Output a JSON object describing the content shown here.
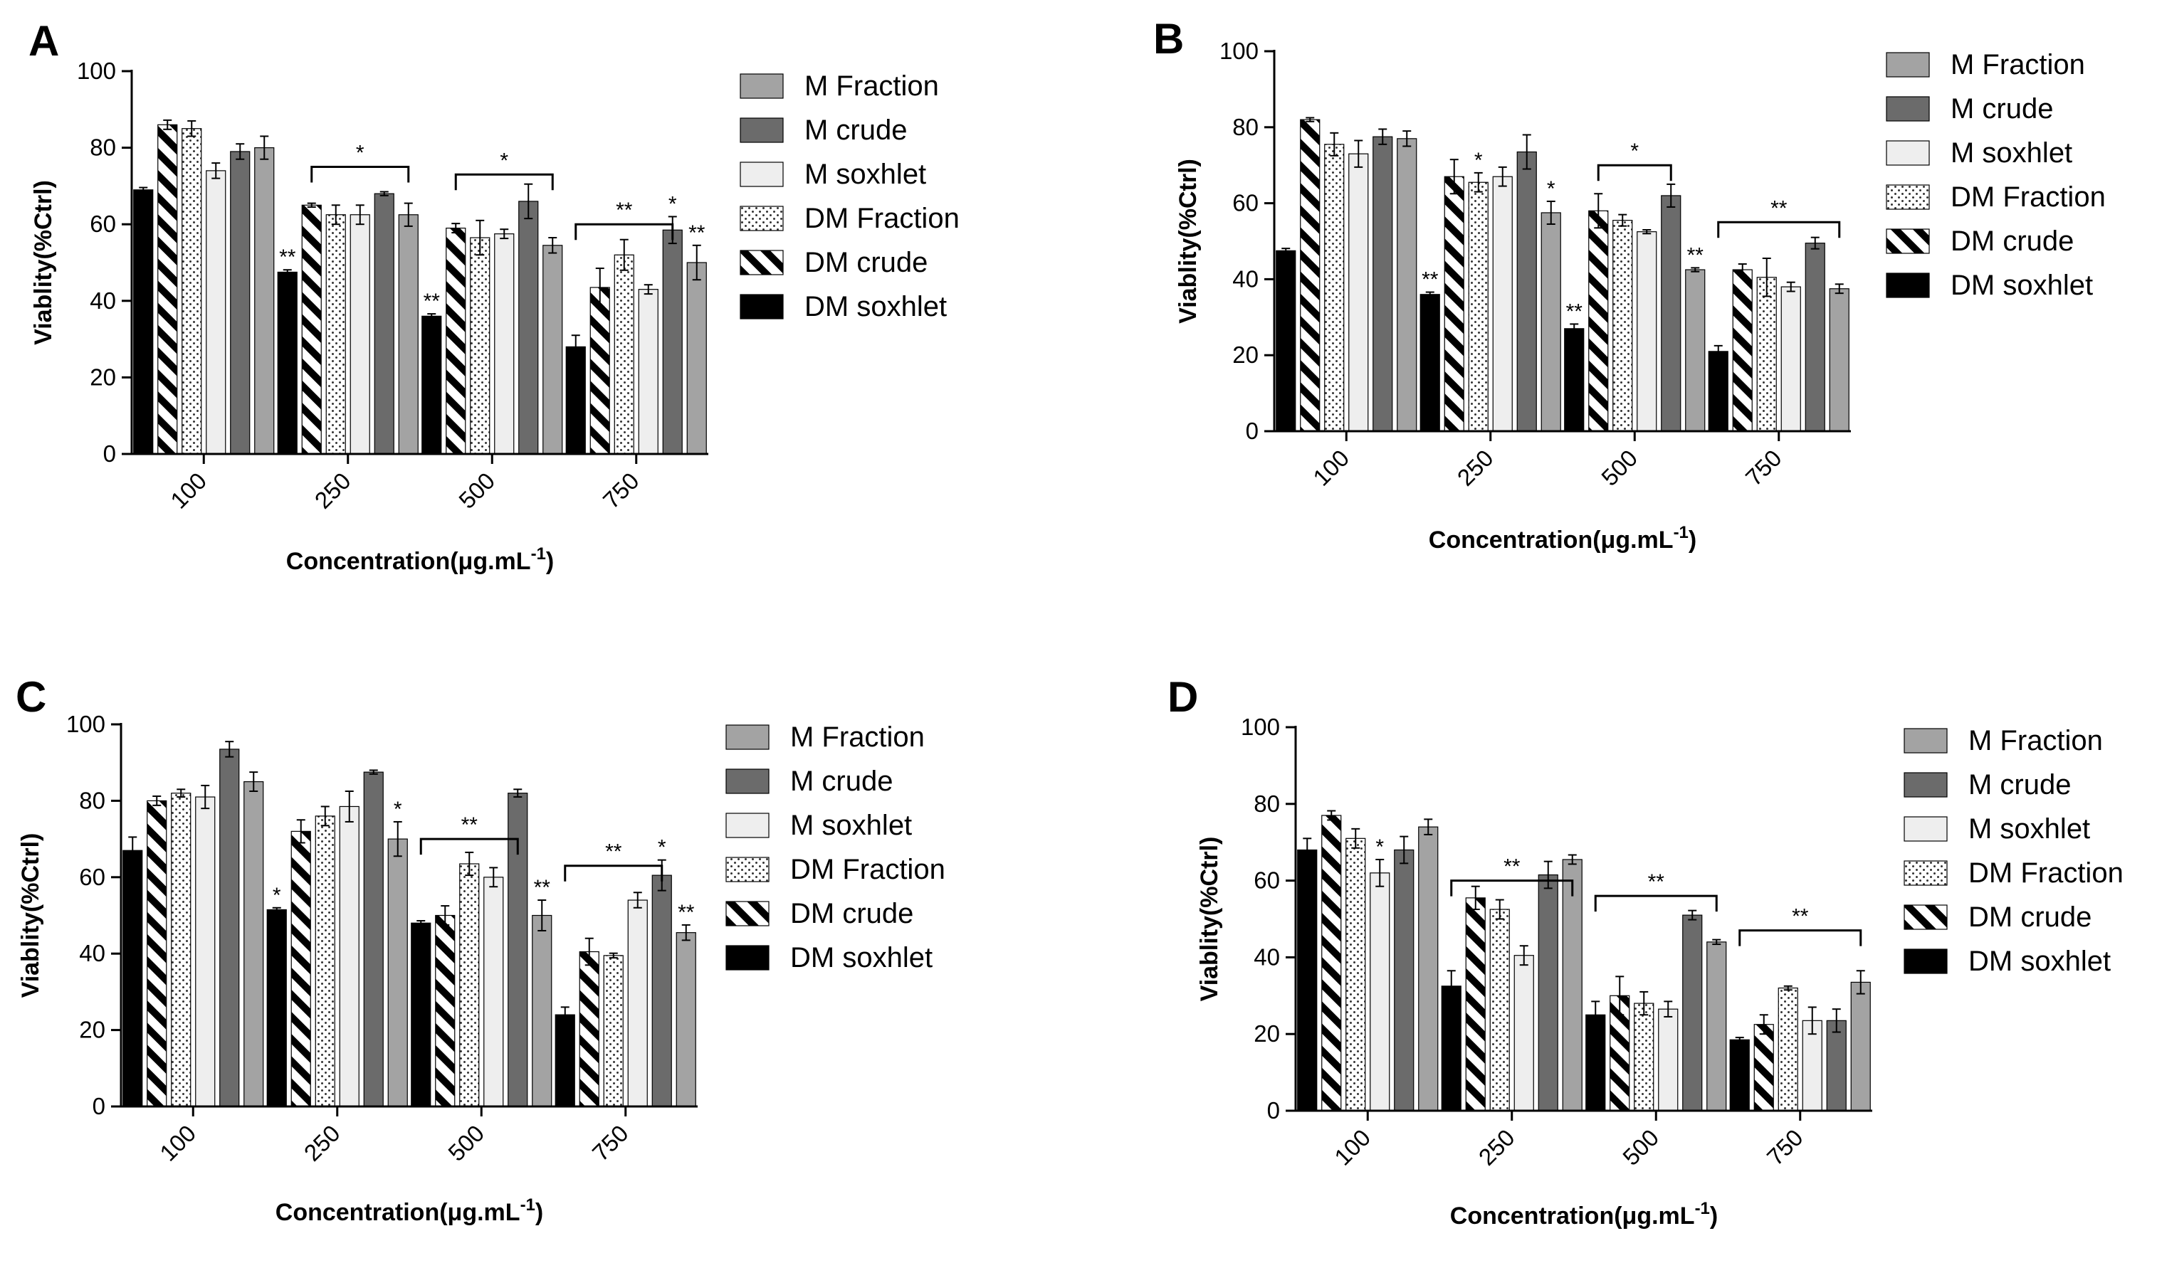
{
  "colors": {
    "DM soxhlet": "#000000",
    "DM crude": "#ffffff",
    "DM Fraction": "#ffffff",
    "M soxhlet": "#eeeeee",
    "M crude": "#6b6b6b",
    "M Fraction": "#a3a3a3"
  },
  "chart_data": [
    {
      "panel": "A",
      "type": "bar",
      "xlabel": "Concentration(μg.mL",
      "xlabel_sup": "-1",
      "xlabel_close": ")",
      "ylabel": "Viablity(%Ctrl)",
      "ylim": [
        0,
        100
      ],
      "yticks": [
        "0",
        "20",
        "40",
        "60",
        "80",
        "100"
      ],
      "categories": [
        "100",
        "250",
        "500",
        "750"
      ],
      "legend": [
        "M Fraction",
        "M crude",
        "M soxhlet",
        "DM Fraction",
        "DM crude",
        "DM soxhlet"
      ],
      "series": [
        {
          "name": "DM soxhlet",
          "values": [
            69,
            47.5,
            36,
            28
          ],
          "errors": [
            0.6,
            0.6,
            0.6,
            3
          ],
          "sig": [
            "",
            "**",
            "**",
            ""
          ]
        },
        {
          "name": "DM crude",
          "values": [
            86,
            65,
            59,
            43.5
          ],
          "errors": [
            1.2,
            0.5,
            1.2,
            5
          ],
          "sig": [
            "",
            "",
            "",
            ""
          ]
        },
        {
          "name": "DM Fraction",
          "values": [
            85,
            62.5,
            56.5,
            52
          ],
          "errors": [
            2,
            2.5,
            4.5,
            4
          ],
          "sig": [
            "",
            "",
            "",
            ""
          ]
        },
        {
          "name": "M soxhlet",
          "values": [
            74,
            62.5,
            57.5,
            43
          ],
          "errors": [
            2,
            2.5,
            1.2,
            1.2
          ],
          "sig": [
            "",
            "",
            "",
            ""
          ]
        },
        {
          "name": "M crude",
          "values": [
            79,
            68,
            66,
            58.5
          ],
          "errors": [
            2,
            0.5,
            4.5,
            3.5
          ],
          "sig": [
            "",
            "",
            "",
            "*"
          ]
        },
        {
          "name": "M Fraction",
          "values": [
            80,
            62.5,
            54.5,
            50
          ],
          "errors": [
            3,
            3,
            2,
            4.5
          ],
          "sig": [
            "",
            "",
            "",
            "**"
          ]
        }
      ],
      "brackets": [
        {
          "category": 1,
          "from": 1,
          "to": 5,
          "level": 75,
          "label": "*"
        },
        {
          "category": 2,
          "from": 1,
          "to": 5,
          "level": 73,
          "label": "*"
        },
        {
          "category": 3,
          "from": 0,
          "to": 4,
          "level": 60,
          "label": "**"
        }
      ]
    },
    {
      "panel": "B",
      "type": "bar",
      "xlabel": "Concentration(μg.mL",
      "xlabel_sup": "-1",
      "xlabel_close": ")",
      "ylabel": "Viablity(%Ctrl)",
      "ylim": [
        0,
        100
      ],
      "yticks": [
        "0",
        "20",
        "40",
        "60",
        "80",
        "100"
      ],
      "categories": [
        "100",
        "250",
        "500",
        "750"
      ],
      "legend": [
        "M Fraction",
        "M crude",
        "M soxhlet",
        "DM Fraction",
        "DM crude",
        "DM soxhlet"
      ],
      "series": [
        {
          "name": "DM soxhlet",
          "values": [
            47.5,
            36,
            27,
            21
          ],
          "errors": [
            0.6,
            0.6,
            1.2,
            1.5
          ],
          "sig": [
            "",
            "**",
            "**",
            ""
          ]
        },
        {
          "name": "DM crude",
          "values": [
            82,
            67,
            58,
            42.5
          ],
          "errors": [
            0.5,
            4.5,
            4.5,
            1.5
          ],
          "sig": [
            "",
            "",
            "",
            ""
          ]
        },
        {
          "name": "DM Fraction",
          "values": [
            75.5,
            65.5,
            55.5,
            40.5
          ],
          "errors": [
            3,
            2.5,
            1.5,
            5
          ],
          "sig": [
            "",
            "*",
            "",
            ""
          ]
        },
        {
          "name": "M soxhlet",
          "values": [
            73,
            67,
            52.5,
            38
          ],
          "errors": [
            3.5,
            2.5,
            0.5,
            1.2
          ],
          "sig": [
            "",
            "",
            "",
            ""
          ]
        },
        {
          "name": "M crude",
          "values": [
            77.5,
            73.5,
            62,
            49.5
          ],
          "errors": [
            2,
            4.5,
            3,
            1.5
          ],
          "sig": [
            "",
            "",
            "",
            ""
          ]
        },
        {
          "name": "M Fraction",
          "values": [
            77,
            57.5,
            42.5,
            37.5
          ],
          "errors": [
            2,
            3,
            0.5,
            1.2
          ],
          "sig": [
            "",
            "*",
            "**",
            ""
          ]
        }
      ],
      "brackets": [
        {
          "category": 2,
          "from": 1,
          "to": 4,
          "level": 70,
          "label": "*"
        },
        {
          "category": 3,
          "from": 0,
          "to": 5,
          "level": 55,
          "label": "**"
        }
      ]
    },
    {
      "panel": "C",
      "type": "bar",
      "xlabel": "Concentration(μg.mL",
      "xlabel_sup": "-1",
      "xlabel_close": ")",
      "ylabel": "Viablity(%Ctrl)",
      "ylim": [
        0,
        100
      ],
      "yticks": [
        "0",
        "20",
        "40",
        "60",
        "80",
        "100"
      ],
      "categories": [
        "100",
        "250",
        "500",
        "750"
      ],
      "legend": [
        "M Fraction",
        "M crude",
        "M soxhlet",
        "DM Fraction",
        "DM crude",
        "DM soxhlet"
      ],
      "series": [
        {
          "name": "DM soxhlet",
          "values": [
            67,
            51.5,
            48,
            24
          ],
          "errors": [
            3.5,
            0.5,
            0.6,
            2
          ],
          "sig": [
            "",
            "*",
            "",
            ""
          ]
        },
        {
          "name": "DM crude",
          "values": [
            80,
            72,
            50,
            40.5
          ],
          "errors": [
            1.2,
            3,
            2.5,
            3.5
          ],
          "sig": [
            "",
            "",
            "",
            ""
          ]
        },
        {
          "name": "DM Fraction",
          "values": [
            82,
            76,
            63.5,
            39.5
          ],
          "errors": [
            1,
            2.5,
            3,
            0.6
          ],
          "sig": [
            "",
            "",
            "",
            ""
          ]
        },
        {
          "name": "M soxhlet",
          "values": [
            81,
            78.5,
            60,
            54
          ],
          "errors": [
            3,
            4,
            2.5,
            2
          ],
          "sig": [
            "",
            "",
            "",
            ""
          ]
        },
        {
          "name": "M crude",
          "values": [
            93.5,
            87.5,
            82,
            60.5
          ],
          "errors": [
            2,
            0.5,
            1,
            4
          ],
          "sig": [
            "",
            "",
            "",
            "*"
          ]
        },
        {
          "name": "M Fraction",
          "values": [
            85,
            70,
            50,
            45.5
          ],
          "errors": [
            2.5,
            4.5,
            4,
            2
          ],
          "sig": [
            "",
            "*",
            "**",
            "**"
          ]
        }
      ],
      "brackets": [
        {
          "category": 2,
          "from": 0,
          "to": 4,
          "level": 70,
          "label": "**"
        },
        {
          "category": 3,
          "from": 0,
          "to": 4,
          "level": 63,
          "label": "**"
        }
      ]
    },
    {
      "panel": "D",
      "type": "bar",
      "xlabel": "Concentration(μg.mL",
      "xlabel_sup": "-1",
      "xlabel_close": ")",
      "ylabel": "Viablity(%Ctrl)",
      "ylim": [
        0,
        100
      ],
      "yticks": [
        "0",
        "20",
        "40",
        "60",
        "80",
        "100"
      ],
      "categories": [
        "100",
        "250",
        "500",
        "750"
      ],
      "legend": [
        "M Fraction",
        "M crude",
        "M soxhlet",
        "DM Fraction",
        "DM crude",
        "DM soxhlet"
      ],
      "series": [
        {
          "name": "DM soxhlet",
          "values": [
            68,
            32.5,
            25,
            18.5
          ],
          "errors": [
            3,
            4,
            3.5,
            0.6
          ],
          "sig": [
            "",
            "",
            "",
            ""
          ]
        },
        {
          "name": "DM crude",
          "values": [
            77,
            55.5,
            30,
            22.5
          ],
          "errors": [
            1.2,
            3,
            5,
            2.5
          ],
          "sig": [
            "",
            "",
            "",
            ""
          ]
        },
        {
          "name": "DM Fraction",
          "values": [
            71,
            52.5,
            28,
            32
          ],
          "errors": [
            2.5,
            2.5,
            3,
            0.5
          ],
          "sig": [
            "",
            "",
            "",
            ""
          ]
        },
        {
          "name": "M soxhlet",
          "values": [
            62,
            40.5,
            26.5,
            23.5
          ],
          "errors": [
            3.5,
            2.5,
            2,
            3.5
          ],
          "sig": [
            "*",
            "",
            "",
            ""
          ]
        },
        {
          "name": "M crude",
          "values": [
            68,
            61.5,
            51,
            23.5
          ],
          "errors": [
            3.5,
            3.5,
            1.2,
            3
          ],
          "sig": [
            "",
            "",
            "",
            ""
          ]
        },
        {
          "name": "M Fraction",
          "values": [
            74,
            65.5,
            44,
            33.5
          ],
          "errors": [
            2,
            1.2,
            0.6,
            3
          ],
          "sig": [
            "",
            "",
            "",
            ""
          ]
        }
      ],
      "brackets": [
        {
          "category": 1,
          "from": 0,
          "to": 5,
          "level": 60,
          "label": "**"
        },
        {
          "category": 2,
          "from": 0,
          "to": 5,
          "level": 56,
          "label": "**"
        },
        {
          "category": 3,
          "from": 0,
          "to": 5,
          "level": 47,
          "label": "**"
        }
      ]
    }
  ]
}
